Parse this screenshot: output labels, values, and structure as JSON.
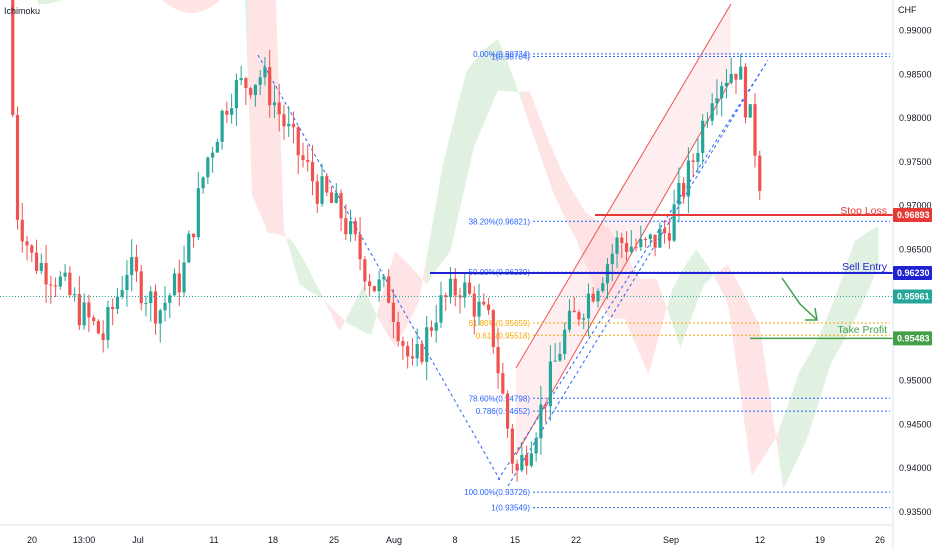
{
  "indicator_label": "Ichimoku",
  "currency_label": "CHF",
  "colors": {
    "up": "#26a69a",
    "down": "#ef5350",
    "kumo_green": "#c8e6c9",
    "kumo_red": "#ffcdd2",
    "fib_blue": "#2962ff",
    "fib_orange": "#f7a600",
    "stop_loss": "#e53935",
    "sell_entry": "#1e22d0",
    "take_profit": "#43a047",
    "current_price": "#26a69a",
    "channel": "#ef5350"
  },
  "chart_data": {
    "type": "candlestick",
    "instrument_note": "CHF-quoted pair with Ichimoku cloud",
    "ylim": [
      0.9335,
      0.9935
    ],
    "x_ticks": [
      "20",
      "13:00",
      "Jul",
      "11",
      "18",
      "25",
      "Aug",
      "8",
      "15",
      "22",
      "Sep",
      "12",
      "19",
      "26"
    ],
    "y_ticks": [
      "0.99000",
      "0.98500",
      "0.98000",
      "0.97500",
      "0.97000",
      "0.96500",
      "0.96000",
      "0.95500",
      "0.95000",
      "0.94500",
      "0.94000",
      "0.93500"
    ],
    "price_tags": [
      {
        "name": "stop-loss",
        "label": "0.96893",
        "value": 0.96893
      },
      {
        "name": "sell-entry",
        "label": "0.96230",
        "value": 0.9623
      },
      {
        "name": "current-price",
        "label": "0.95961",
        "value": 0.95961
      },
      {
        "name": "take-profit",
        "label": "0.95483",
        "value": 0.95483
      }
    ],
    "annotations": [
      {
        "name": "stop-loss",
        "text": "Stop Loss"
      },
      {
        "name": "sell-entry",
        "text": "Sell Entry"
      },
      {
        "name": "take-profit",
        "text": "Take Profit"
      }
    ],
    "fib_levels_upper": [
      {
        "label": "0.00%(0.98734)",
        "value": 0.98734
      },
      {
        "label": "1(0.98704)",
        "value": 0.98704
      },
      {
        "label": "38.20%(0.96821)",
        "value": 0.96821
      },
      {
        "label": "50.00%(0.96239)",
        "value": 0.96239
      },
      {
        "label": "61.80%(0.95659)",
        "value": 0.95659
      },
      {
        "label": "0.618(0.95518)",
        "value": 0.95518
      }
    ],
    "fib_levels_lower": [
      {
        "label": "78.60%(0.94798)",
        "value": 0.94798
      },
      {
        "label": "0.786(0.94652)",
        "value": 0.94652
      },
      {
        "label": "100.00%(0.93726)",
        "value": 0.93726
      },
      {
        "label": "1(0.93549)",
        "value": 0.93549
      }
    ],
    "price_path_days": [
      0,
      1,
      3,
      6,
      9,
      12,
      15,
      19,
      22,
      25,
      28,
      32,
      36,
      39,
      42,
      46,
      48,
      51,
      54,
      57,
      61,
      64,
      67,
      70,
      74,
      77,
      80,
      83,
      86,
      89,
      92,
      94,
      96
    ],
    "price_path_values": [
      0.996,
      0.97,
      0.964,
      0.962,
      0.958,
      0.955,
      0.963,
      0.958,
      0.962,
      0.975,
      0.983,
      0.985,
      0.977,
      0.972,
      0.969,
      0.961,
      0.96,
      0.951,
      0.958,
      0.961,
      0.956,
      0.939,
      0.946,
      0.955,
      0.961,
      0.966,
      0.965,
      0.967,
      0.974,
      0.984,
      0.986,
      0.978,
      0.966
    ]
  }
}
